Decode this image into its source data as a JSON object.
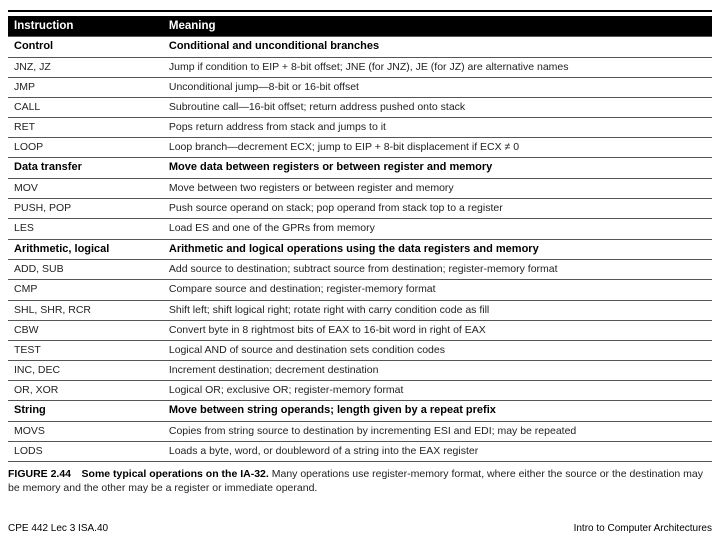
{
  "header": {
    "col1": "Instruction",
    "col2": "Meaning"
  },
  "groups": [
    {
      "section": [
        "Control",
        "Conditional and unconditional branches"
      ],
      "rows": [
        [
          "JNZ, JZ",
          "Jump if condition to EIP + 8-bit offset; JNE (for JNZ), JE (for JZ) are alternative names"
        ],
        [
          "JMP",
          "Unconditional jump—8-bit or 16-bit offset"
        ],
        [
          "CALL",
          "Subroutine call—16-bit offset; return address pushed onto stack"
        ],
        [
          "RET",
          "Pops return address from stack and jumps to it"
        ],
        [
          "LOOP",
          "Loop branch—decrement ECX; jump to EIP + 8-bit displacement if ECX ≠ 0"
        ]
      ]
    },
    {
      "section": [
        "Data transfer",
        "Move data between registers or between register and memory"
      ],
      "rows": [
        [
          "MOV",
          "Move between two registers or between register and memory"
        ],
        [
          "PUSH, POP",
          "Push source operand on stack; pop operand from stack top to a register"
        ],
        [
          "LES",
          "Load ES and one of the GPRs from memory"
        ]
      ]
    },
    {
      "section": [
        "Arithmetic, logical",
        "Arithmetic and logical operations using the data registers and memory"
      ],
      "rows": [
        [
          "ADD, SUB",
          "Add source to destination; subtract source from destination; register-memory format"
        ],
        [
          "CMP",
          "Compare source and destination; register-memory format"
        ],
        [
          "SHL, SHR, RCR",
          "Shift left; shift logical right; rotate right with carry condition code as fill"
        ],
        [
          "CBW",
          "Convert byte in 8 rightmost bits of EAX to 16-bit word in right of EAX"
        ],
        [
          "TEST",
          "Logical AND of source and destination sets condition codes"
        ],
        [
          "INC, DEC",
          "Increment destination; decrement destination"
        ],
        [
          "OR, XOR",
          "Logical OR; exclusive OR; register-memory format"
        ]
      ]
    },
    {
      "section": [
        "String",
        "Move between string operands; length given by a repeat prefix"
      ],
      "rows": [
        [
          "MOVS",
          "Copies from string source to destination by incrementing ESI and EDI; may be repeated"
        ],
        [
          "LODS",
          "Loads a byte, word, or doubleword of a string into the EAX register"
        ]
      ]
    }
  ],
  "caption": {
    "bold": "FIGURE 2.44 Some typical operations on the IA-32.",
    "rest": " Many operations use register-memory format, where either the source or the destination may be memory and the other may be a register or immediate operand."
  },
  "footer": {
    "left": "CPE 442 Lec 3 ISA.40",
    "right": "Intro to Computer Architectures"
  }
}
